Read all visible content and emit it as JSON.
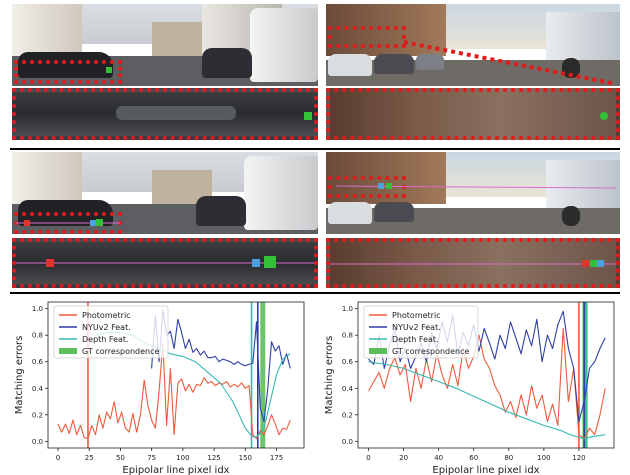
{
  "palette": {
    "photometric": "#ef5a3c",
    "nyuv2": "#2f3fa6",
    "depth": "#36b8b2",
    "gt": "#5cbf5c",
    "dotted_box": "#e31a1c",
    "marker_green": "#33c13a",
    "marker_red": "#e0342c",
    "marker_blue": "#4aa3e0"
  },
  "chart_data": [
    {
      "type": "line",
      "xlabel": "Epipolar line pixel idx",
      "ylabel": "Matching errors",
      "xlim": [
        -8,
        197
      ],
      "ylim": [
        -0.05,
        1.05
      ],
      "xticks": [
        0,
        25,
        50,
        75,
        100,
        125,
        150,
        175
      ],
      "yticks": [
        0.0,
        0.2,
        0.4,
        0.6,
        0.8,
        1.0
      ],
      "legend": "top-left",
      "grid": false,
      "series": [
        {
          "name": "Photometric",
          "color": "#ef5a3c",
          "x": [
            0,
            3,
            6,
            9,
            12,
            15,
            18,
            21,
            24,
            27,
            30,
            33,
            36,
            39,
            42,
            45,
            48,
            51,
            54,
            57,
            60,
            63,
            66,
            69,
            72,
            75,
            78,
            81,
            84,
            87,
            90,
            93,
            96,
            99,
            102,
            105,
            108,
            111,
            114,
            117,
            120,
            123,
            126,
            129,
            132,
            135,
            138,
            141,
            144,
            147,
            150,
            153,
            156,
            159,
            162,
            165,
            168,
            171,
            174,
            177,
            180,
            183,
            186
          ],
          "y": [
            0.13,
            0.07,
            0.13,
            0.06,
            0.16,
            0.05,
            0.12,
            0.03,
            0.02,
            0.12,
            0.05,
            0.2,
            0.1,
            0.22,
            0.17,
            0.3,
            0.14,
            0.22,
            0.1,
            0.07,
            0.21,
            0.07,
            0.2,
            0.46,
            0.27,
            0.16,
            0.1,
            0.38,
            0.74,
            0.12,
            0.55,
            0.05,
            0.44,
            0.47,
            0.38,
            0.43,
            0.37,
            0.43,
            0.42,
            0.48,
            0.44,
            0.45,
            0.42,
            0.44,
            0.43,
            0.45,
            0.41,
            0.43,
            0.41,
            0.44,
            0.4,
            0.42,
            0.05,
            0.02,
            0.08,
            0.05,
            0.12,
            0.2,
            0.13,
            0.05,
            0.1,
            0.09,
            0.16
          ]
        },
        {
          "name": "NYUv2 Feat.",
          "color": "#2f3fa6",
          "x": [
            75,
            78,
            81,
            84,
            87,
            90,
            93,
            96,
            99,
            102,
            105,
            108,
            111,
            114,
            117,
            120,
            123,
            126,
            129,
            132,
            135,
            138,
            141,
            144,
            147,
            150,
            153,
            156,
            159,
            162,
            165,
            168,
            171,
            174,
            177,
            180,
            183,
            186
          ],
          "y": [
            0.55,
            0.95,
            0.6,
            0.99,
            0.8,
            0.83,
            0.7,
            0.92,
            0.82,
            0.7,
            0.77,
            0.67,
            0.7,
            0.65,
            0.68,
            0.63,
            0.63,
            0.64,
            0.6,
            0.62,
            0.61,
            0.6,
            0.58,
            0.6,
            0.58,
            0.57,
            0.58,
            0.59,
            0.9,
            0.25,
            0.15,
            0.4,
            0.75,
            0.68,
            0.72,
            0.58,
            0.66,
            0.55
          ]
        },
        {
          "name": "Depth Feat.",
          "color": "#36b8b2",
          "x": [
            30,
            40,
            50,
            60,
            70,
            80,
            90,
            100,
            110,
            120,
            130,
            140,
            145,
            150,
            155,
            158,
            161,
            165,
            170,
            175,
            180,
            186
          ],
          "y": [
            0.8,
            0.82,
            0.82,
            0.8,
            0.74,
            0.7,
            0.66,
            0.64,
            0.6,
            0.52,
            0.44,
            0.3,
            0.2,
            0.1,
            0.04,
            0.03,
            0.05,
            0.1,
            0.3,
            0.5,
            0.62,
            0.66
          ]
        }
      ],
      "vertical_lines": [
        {
          "x": 24,
          "color": "#ef5a3c"
        },
        {
          "x": 155,
          "color": "#36b8b2"
        },
        {
          "x": 160,
          "color": "#2f3fa6"
        }
      ],
      "gt_band": {
        "name": "GT correspondence",
        "from": 162,
        "to": 166,
        "color": "#5cbf5c"
      }
    },
    {
      "type": "line",
      "xlabel": "Epipolar line pixel idx",
      "ylabel": "Matching errors",
      "xlim": [
        -6,
        140
      ],
      "ylim": [
        -0.05,
        1.05
      ],
      "xticks": [
        0,
        20,
        40,
        60,
        80,
        100,
        120
      ],
      "yticks": [
        0.0,
        0.2,
        0.4,
        0.6,
        0.8,
        1.0
      ],
      "legend": "top-left",
      "grid": false,
      "series": [
        {
          "name": "Photometric",
          "color": "#ef5a3c",
          "x": [
            0,
            3,
            6,
            9,
            12,
            15,
            18,
            21,
            24,
            27,
            30,
            33,
            36,
            39,
            42,
            45,
            48,
            51,
            54,
            57,
            60,
            63,
            66,
            69,
            72,
            75,
            78,
            81,
            84,
            87,
            90,
            93,
            96,
            99,
            102,
            105,
            108,
            111,
            114,
            117,
            120,
            123,
            126,
            129,
            132,
            135
          ],
          "y": [
            0.38,
            0.45,
            0.52,
            0.4,
            0.55,
            0.63,
            0.5,
            0.58,
            0.3,
            0.55,
            0.4,
            0.62,
            0.45,
            0.66,
            0.5,
            0.4,
            0.58,
            0.42,
            0.7,
            0.55,
            0.64,
            0.8,
            0.62,
            0.55,
            0.42,
            0.35,
            0.22,
            0.3,
            0.18,
            0.35,
            0.2,
            0.42,
            0.25,
            0.35,
            0.15,
            0.28,
            0.12,
            0.85,
            0.3,
            0.55,
            0.05,
            0.02,
            0.1,
            0.05,
            0.2,
            0.4
          ]
        },
        {
          "name": "NYUv2 Feat.",
          "color": "#2f3fa6",
          "x": [
            0,
            3,
            6,
            9,
            12,
            15,
            18,
            21,
            24,
            27,
            30,
            33,
            36,
            39,
            42,
            45,
            48,
            51,
            54,
            57,
            60,
            63,
            66,
            69,
            72,
            75,
            78,
            81,
            84,
            87,
            90,
            93,
            96,
            99,
            102,
            105,
            108,
            111,
            114,
            117,
            120,
            123,
            126,
            129,
            132,
            135
          ],
          "y": [
            0.62,
            0.58,
            0.8,
            0.55,
            0.72,
            0.85,
            0.6,
            0.7,
            0.55,
            0.64,
            0.74,
            0.6,
            0.82,
            0.7,
            0.9,
            0.75,
            0.95,
            0.65,
            0.82,
            0.72,
            0.88,
            0.68,
            0.85,
            0.74,
            0.62,
            0.8,
            0.7,
            0.9,
            0.78,
            0.66,
            0.84,
            0.72,
            0.92,
            0.6,
            0.8,
            0.7,
            0.88,
            0.98,
            0.7,
            0.55,
            0.15,
            0.3,
            0.55,
            0.6,
            0.7,
            0.78
          ]
        },
        {
          "name": "Depth Feat.",
          "color": "#36b8b2",
          "x": [
            0,
            10,
            20,
            30,
            40,
            50,
            60,
            70,
            80,
            90,
            100,
            110,
            115,
            120,
            123,
            126,
            130,
            135
          ],
          "y": [
            0.6,
            0.58,
            0.55,
            0.5,
            0.45,
            0.4,
            0.34,
            0.28,
            0.22,
            0.17,
            0.12,
            0.08,
            0.05,
            0.03,
            0.02,
            0.03,
            0.04,
            0.05
          ]
        }
      ],
      "vertical_lines": [
        {
          "x": 120,
          "color": "#ef5a3c"
        },
        {
          "x": 123,
          "color": "#2f3fa6"
        },
        {
          "x": 124,
          "color": "#36b8b2"
        }
      ],
      "gt_band": {
        "name": "GT correspondence",
        "from": 122,
        "to": 125,
        "color": "#5cbf5c"
      }
    }
  ]
}
